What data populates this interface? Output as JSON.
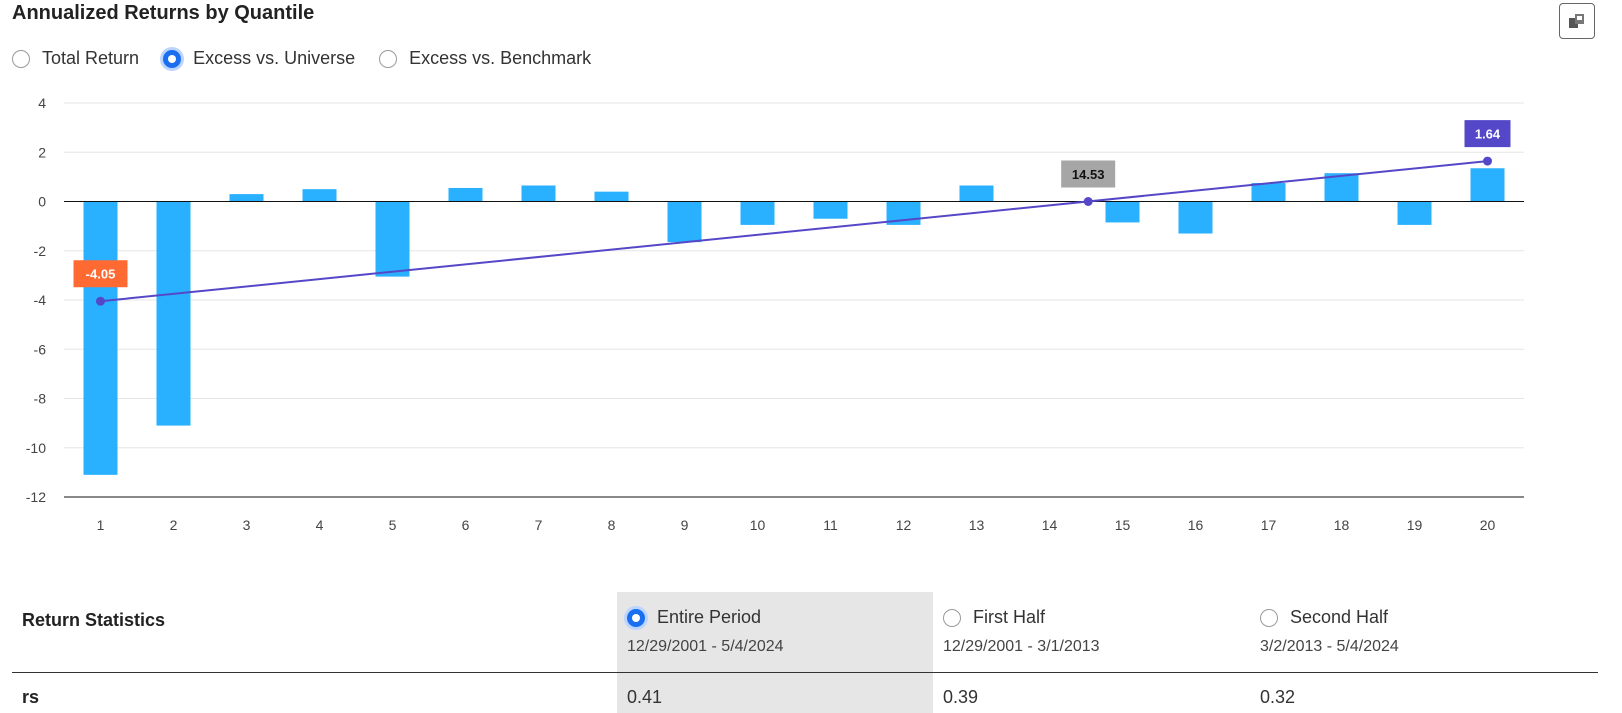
{
  "title": "Annualized Returns by Quantile",
  "return_type_options": [
    {
      "label": "Total Return",
      "selected": false
    },
    {
      "label": "Excess vs. Universe",
      "selected": true
    },
    {
      "label": "Excess vs. Benchmark",
      "selected": false
    }
  ],
  "colors": {
    "bar": "#29b0ff",
    "trend_line": "#5548c8",
    "label_min": "#ff6a33",
    "label_mid": "#a6a6a6",
    "label_max": "#5548c8",
    "radio_selected": "#1a6ff0"
  },
  "export_icon": "export-image-icon",
  "chart_data": {
    "type": "bar",
    "categories": [
      "1",
      "2",
      "3",
      "4",
      "5",
      "6",
      "7",
      "8",
      "9",
      "10",
      "11",
      "12",
      "13",
      "14",
      "15",
      "16",
      "17",
      "18",
      "19",
      "20"
    ],
    "values": [
      -11.1,
      -9.1,
      0.3,
      0.5,
      -3.05,
      0.55,
      0.65,
      0.4,
      -1.65,
      -0.95,
      -0.7,
      -0.95,
      0.65,
      0,
      -0.85,
      -1.3,
      0.75,
      1.15,
      -0.95,
      1.35
    ],
    "ylim": [
      -12,
      4
    ],
    "yticks": [
      4,
      2,
      0,
      -2,
      -4,
      -6,
      -8,
      -10,
      -12
    ],
    "grid": true,
    "trend_line": {
      "x_start": 1,
      "y_start": -4.05,
      "x_end": 20,
      "y_end": 1.64
    },
    "annotations": [
      {
        "label": "-4.05",
        "x": 1,
        "y": -4.05,
        "style": "min"
      },
      {
        "label": "14.53",
        "x": 14.53,
        "y": 0,
        "style": "mid"
      },
      {
        "label": "1.64",
        "x": 20,
        "y": 1.64,
        "style": "max"
      }
    ]
  },
  "stats": {
    "title": "Return Statistics",
    "periods": [
      {
        "label": "Entire Period",
        "range": "12/29/2001 - 5/4/2024",
        "selected": true
      },
      {
        "label": "First Half",
        "range": "12/29/2001 - 3/1/2013",
        "selected": false
      },
      {
        "label": "Second Half",
        "range": "3/2/2013 - 5/4/2024",
        "selected": false
      }
    ],
    "rows": [
      {
        "label": "rs",
        "values": [
          "0.41",
          "0.39",
          "0.32"
        ]
      }
    ]
  }
}
